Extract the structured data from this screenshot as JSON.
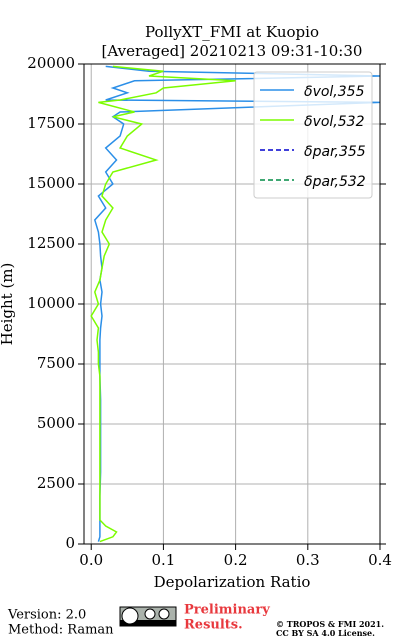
{
  "chart_data": {
    "type": "profile",
    "title": "PollyXT_FMI at Kuopio",
    "subtitle": "[Averaged] 20210213 09:31-10:30",
    "x_label": "Depolarization Ratio",
    "y_label": "Height (m)",
    "heights": [
      100,
      300,
      500,
      750,
      1000,
      1500,
      2000,
      3000,
      4000,
      5000,
      6000,
      7000,
      7500,
      8000,
      8500,
      9000,
      9500,
      10000,
      10500,
      11000,
      11500,
      12000,
      12500,
      13000,
      13500,
      14000,
      14500,
      15000,
      15500,
      16000,
      16500,
      17000,
      17500,
      17800,
      18000,
      18400,
      18500,
      18800,
      19000,
      19300,
      19500,
      19700,
      19900
    ],
    "series": [
      {
        "name": "δvol,355",
        "color": "#2b8fe8",
        "style": "solid",
        "values": [
          0.01,
          0.012,
          0.012,
          0.012,
          0.012,
          0.012,
          0.012,
          0.013,
          0.013,
          0.013,
          0.013,
          0.012,
          0.012,
          0.012,
          0.012,
          0.013,
          0.015,
          0.013,
          0.015,
          0.012,
          0.015,
          0.013,
          0.012,
          0.01,
          0.005,
          0.02,
          0.01,
          0.03,
          0.02,
          0.035,
          0.02,
          0.04,
          0.045,
          0.03,
          0.04,
          0.4,
          0.02,
          0.05,
          0.03,
          0.06,
          0.4,
          0.08,
          0.02
        ]
      },
      {
        "name": "δvol,532",
        "color": "#7cfc00",
        "style": "solid",
        "values": [
          0.012,
          0.03,
          0.035,
          0.02,
          0.012,
          0.012,
          0.012,
          0.012,
          0.012,
          0.012,
          0.012,
          0.012,
          0.01,
          0.01,
          0.008,
          0.01,
          0.0,
          0.01,
          0.005,
          0.012,
          0.015,
          0.018,
          0.025,
          0.015,
          0.02,
          0.03,
          0.015,
          0.02,
          0.03,
          0.09,
          0.04,
          0.05,
          0.07,
          0.03,
          0.06,
          0.01,
          0.04,
          0.09,
          0.1,
          0.2,
          0.08,
          0.1,
          0.03
        ]
      },
      {
        "name": "δpar,355",
        "color": "#0000cd",
        "style": "dashed",
        "values": [
          null,
          null,
          null,
          null,
          null,
          null,
          null,
          null,
          null,
          null,
          null,
          null,
          null,
          null,
          null,
          null,
          null,
          null,
          null,
          null,
          null,
          null,
          null,
          null,
          null,
          null,
          null,
          null,
          null,
          null,
          null,
          null,
          null,
          null,
          null,
          null,
          null,
          null,
          null,
          null,
          null,
          null,
          null
        ]
      },
      {
        "name": "δpar,532",
        "color": "#008b45",
        "style": "dashed",
        "values": [
          null,
          null,
          null,
          null,
          null,
          null,
          null,
          null,
          null,
          null,
          null,
          null,
          null,
          null,
          null,
          null,
          null,
          null,
          null,
          null,
          null,
          null,
          null,
          null,
          null,
          null,
          null,
          null,
          null,
          null,
          null,
          null,
          null,
          null,
          null,
          null,
          null,
          null,
          null,
          null,
          null,
          null,
          null
        ]
      }
    ],
    "xlim": [
      -0.01,
      0.4
    ],
    "ylim": [
      0,
      20000
    ],
    "xticks": [
      {
        "value": 0,
        "label": "0.0"
      },
      0.1,
      0.2,
      0.3,
      0.4
    ],
    "yticks": [
      0,
      2500,
      5000,
      7500,
      10000,
      12500,
      15000,
      17500,
      20000
    ],
    "grid": true,
    "legend": "upper right"
  },
  "footer": {
    "version": "Version: 2.0",
    "method": "Method: Raman",
    "preliminary": "Preliminary",
    "results": "Results.",
    "copyright": "© TROPOS & FMI 2021.",
    "license": "CC BY SA 4.0 License."
  }
}
